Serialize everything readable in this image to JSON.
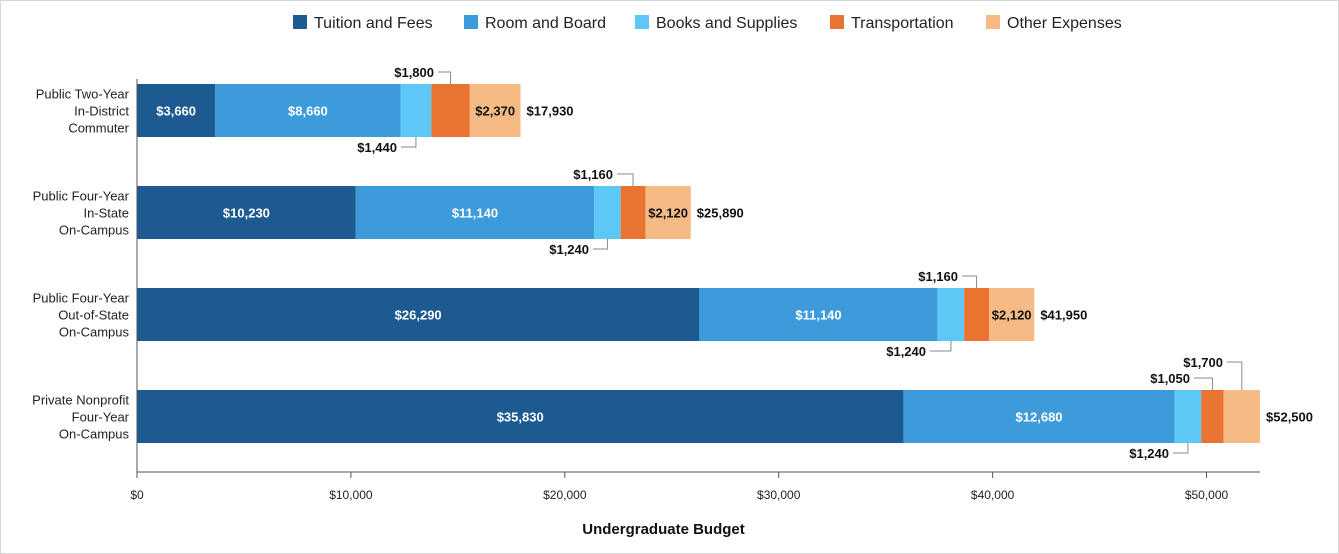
{
  "chart_data": {
    "type": "bar",
    "orientation": "horizontal",
    "stacked": true,
    "xlabel": "Undergraduate Budget",
    "xlim": [
      0,
      52500
    ],
    "xticks": [
      0,
      10000,
      20000,
      30000,
      40000,
      50000
    ],
    "xtick_labels": [
      "$0",
      "$10,000",
      "$20,000",
      "$30,000",
      "$40,000",
      "$50,000"
    ],
    "legend_position": "top-center",
    "grid": false,
    "categories": [
      [
        "Public Two-Year",
        "In-District",
        "Commuter"
      ],
      [
        "Public Four-Year",
        "In-State",
        "On-Campus"
      ],
      [
        "Public Four-Year",
        "Out-of-State",
        "On-Campus"
      ],
      [
        "Private Nonprofit",
        "Four-Year",
        "On-Campus"
      ]
    ],
    "series": [
      {
        "name": "Tuition and Fees",
        "color": "#1d5a91",
        "values": [
          3660,
          10230,
          26290,
          35830
        ],
        "labels": [
          "$3,660",
          "$10,230",
          "$26,290",
          "$35,830"
        ]
      },
      {
        "name": "Room and Board",
        "color": "#3d9bdb",
        "values": [
          8660,
          11140,
          11140,
          12680
        ],
        "labels": [
          "$8,660",
          "$11,140",
          "$11,140",
          "$12,680"
        ]
      },
      {
        "name": "Books and Supplies",
        "color": "#5dc8f5",
        "values": [
          1440,
          1240,
          1240,
          1240
        ],
        "labels": [
          "$1,440",
          "$1,240",
          "$1,240",
          "$1,240"
        ]
      },
      {
        "name": "Transportation",
        "color": "#e97432",
        "values": [
          1800,
          1160,
          1160,
          1050
        ],
        "labels": [
          "$1,800",
          "$1,160",
          "$1,160",
          "$1,050"
        ]
      },
      {
        "name": "Other Expenses",
        "color": "#f6bb85",
        "values": [
          2370,
          2120,
          2120,
          1700
        ],
        "labels": [
          "$2,370",
          "$2,120",
          "$2,120",
          "$1,700"
        ]
      }
    ],
    "totals": [
      "$17,930",
      "$25,890",
      "$41,950",
      "$52,500"
    ]
  }
}
